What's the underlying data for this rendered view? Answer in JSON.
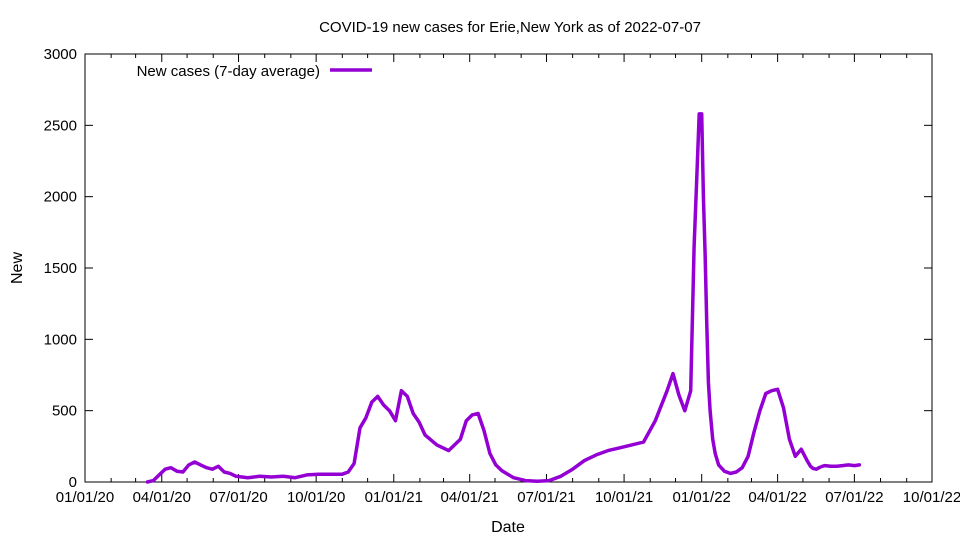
{
  "chart_data": {
    "type": "line",
    "title": "COVID-19 new cases for Erie,New York as of 2022-07-07",
    "xlabel": "Date",
    "ylabel": "New",
    "xlim": [
      "2020-01-01",
      "2022-10-01"
    ],
    "ylim": [
      0,
      3000
    ],
    "x_ticks": [
      "01/01/20",
      "04/01/20",
      "07/01/20",
      "10/01/20",
      "01/01/21",
      "04/01/21",
      "07/01/21",
      "10/01/21",
      "01/01/22",
      "04/01/22",
      "07/01/22",
      "10/01/22"
    ],
    "y_ticks": [
      "0",
      "500",
      "1000",
      "1500",
      "2000",
      "2500",
      "3000"
    ],
    "grid": false,
    "legend_position": "top-left",
    "colors": {
      "series": "#9400d3",
      "axis": "#000000"
    },
    "series": [
      {
        "name": "New cases (7-day average)",
        "x": [
          "2020-03-15",
          "2020-03-22",
          "2020-03-29",
          "2020-04-05",
          "2020-04-12",
          "2020-04-19",
          "2020-04-26",
          "2020-05-03",
          "2020-05-10",
          "2020-05-17",
          "2020-05-24",
          "2020-05-31",
          "2020-06-07",
          "2020-06-14",
          "2020-06-21",
          "2020-06-28",
          "2020-07-12",
          "2020-07-26",
          "2020-08-09",
          "2020-08-23",
          "2020-09-06",
          "2020-09-20",
          "2020-10-04",
          "2020-10-18",
          "2020-10-25",
          "2020-11-01",
          "2020-11-08",
          "2020-11-15",
          "2020-11-22",
          "2020-11-29",
          "2020-12-06",
          "2020-12-13",
          "2020-12-20",
          "2020-12-27",
          "2021-01-03",
          "2021-01-10",
          "2021-01-17",
          "2021-01-24",
          "2021-01-31",
          "2021-02-07",
          "2021-02-21",
          "2021-03-07",
          "2021-03-21",
          "2021-03-28",
          "2021-04-04",
          "2021-04-11",
          "2021-04-18",
          "2021-04-25",
          "2021-05-02",
          "2021-05-09",
          "2021-05-16",
          "2021-05-23",
          "2021-06-06",
          "2021-06-20",
          "2021-07-04",
          "2021-07-18",
          "2021-08-01",
          "2021-08-15",
          "2021-08-29",
          "2021-09-12",
          "2021-09-26",
          "2021-10-10",
          "2021-10-24",
          "2021-11-07",
          "2021-11-21",
          "2021-11-28",
          "2021-12-05",
          "2021-12-12",
          "2021-12-19",
          "2021-12-23",
          "2021-12-26",
          "2021-12-29",
          "2022-01-01",
          "2022-01-03",
          "2022-01-05",
          "2022-01-07",
          "2022-01-09",
          "2022-01-11",
          "2022-01-14",
          "2022-01-17",
          "2022-01-21",
          "2022-01-28",
          "2022-02-04",
          "2022-02-11",
          "2022-02-18",
          "2022-02-25",
          "2022-03-04",
          "2022-03-11",
          "2022-03-18",
          "2022-03-25",
          "2022-04-01",
          "2022-04-08",
          "2022-04-15",
          "2022-04-22",
          "2022-04-29",
          "2022-05-06",
          "2022-05-10",
          "2022-05-13",
          "2022-05-17",
          "2022-05-20",
          "2022-05-24",
          "2022-05-27",
          "2022-06-03",
          "2022-06-10",
          "2022-06-17",
          "2022-06-24",
          "2022-07-01",
          "2022-07-07"
        ],
        "y": [
          0,
          10,
          50,
          90,
          100,
          75,
          70,
          120,
          140,
          120,
          100,
          90,
          110,
          70,
          60,
          40,
          30,
          40,
          35,
          40,
          30,
          50,
          55,
          55,
          55,
          55,
          70,
          130,
          380,
          450,
          560,
          600,
          540,
          500,
          430,
          640,
          600,
          480,
          420,
          330,
          260,
          220,
          300,
          430,
          470,
          480,
          360,
          200,
          120,
          80,
          55,
          30,
          10,
          5,
          10,
          40,
          90,
          150,
          190,
          220,
          240,
          260,
          280,
          430,
          640,
          760,
          610,
          500,
          640,
          1650,
          2100,
          2580,
          2580,
          2000,
          1600,
          1100,
          700,
          500,
          300,
          200,
          120,
          75,
          60,
          70,
          100,
          180,
          350,
          500,
          620,
          640,
          650,
          520,
          300,
          180,
          230,
          150,
          110,
          95,
          90,
          100,
          110,
          115,
          110,
          110,
          115,
          120,
          115,
          120
        ]
      }
    ]
  }
}
